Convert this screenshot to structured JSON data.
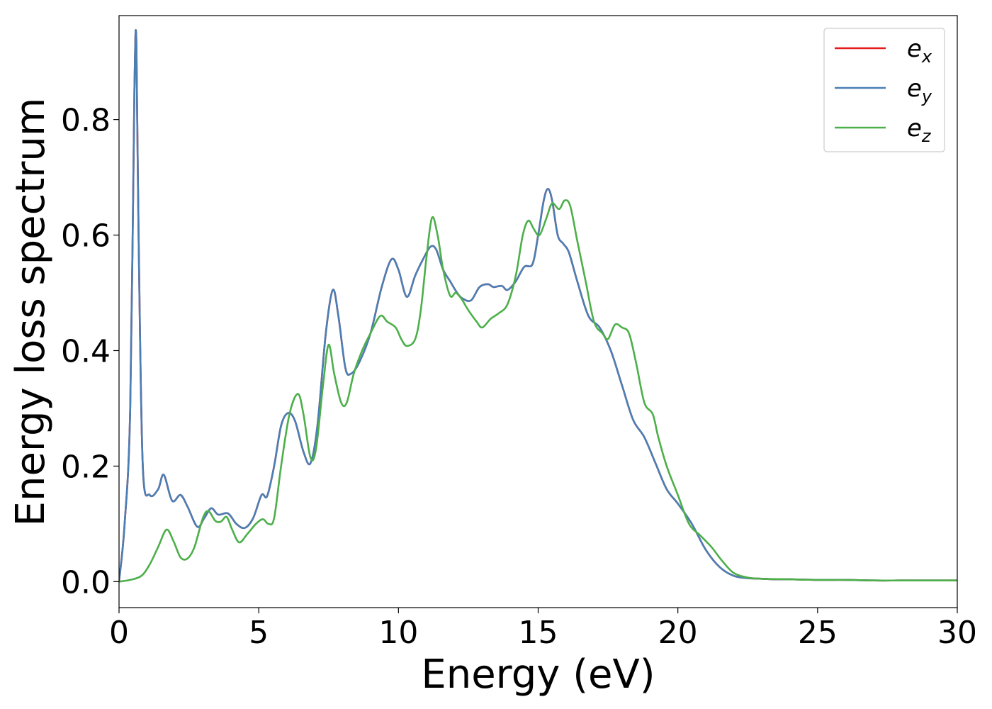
{
  "chart_data": {
    "type": "line",
    "xlabel": "Energy (eV)",
    "ylabel": "Energy loss spectrum",
    "xlim": [
      0,
      30
    ],
    "ylim": [
      -0.045,
      0.98
    ],
    "xticks": [
      0,
      5,
      10,
      15,
      20,
      25,
      30
    ],
    "xtick_labels": [
      "0",
      "5",
      "10",
      "15",
      "20",
      "25",
      "30"
    ],
    "yticks": [
      0.0,
      0.2,
      0.4,
      0.6,
      0.8
    ],
    "ytick_labels": [
      "0.0",
      "0.2",
      "0.4",
      "0.6",
      "0.8"
    ],
    "grid": false,
    "legend_position": "top-right",
    "series": [
      {
        "name": "e",
        "subscript": "x",
        "color": "#e41a1c",
        "x": [
          0,
          0.2,
          0.4,
          0.55,
          0.62,
          0.7,
          0.85,
          1.1,
          1.4,
          1.6,
          1.9,
          2.2,
          2.45,
          2.8,
          3.05,
          3.3,
          3.55,
          3.9,
          4.2,
          4.5,
          4.8,
          5.1,
          5.3,
          5.55,
          5.8,
          6.05,
          6.3,
          6.6,
          6.85,
          7.1,
          7.4,
          7.65,
          7.85,
          8.1,
          8.3,
          8.6,
          9.0,
          9.4,
          9.75,
          10.0,
          10.3,
          10.6,
          10.9,
          11.15,
          11.35,
          11.6,
          11.85,
          12.1,
          12.3,
          12.6,
          12.9,
          13.2,
          13.4,
          13.7,
          13.9,
          14.2,
          14.5,
          14.8,
          15.0,
          15.2,
          15.35,
          15.5,
          15.7,
          15.9,
          16.1,
          16.4,
          16.8,
          17.2,
          17.6,
          18.0,
          18.4,
          18.8,
          19.2,
          19.6,
          20.0,
          20.5,
          21.0,
          21.5,
          22.0,
          22.5,
          23.0,
          23.5,
          24.0,
          25.0,
          26.0,
          27.0,
          28.0,
          29.0,
          30.0
        ],
        "values": [
          0.0,
          0.1,
          0.3,
          0.85,
          0.935,
          0.6,
          0.2,
          0.15,
          0.16,
          0.185,
          0.14,
          0.15,
          0.13,
          0.095,
          0.11,
          0.127,
          0.116,
          0.118,
          0.1,
          0.093,
          0.11,
          0.15,
          0.148,
          0.2,
          0.27,
          0.292,
          0.278,
          0.225,
          0.205,
          0.27,
          0.43,
          0.505,
          0.46,
          0.37,
          0.36,
          0.38,
          0.43,
          0.51,
          0.558,
          0.54,
          0.493,
          0.53,
          0.56,
          0.58,
          0.575,
          0.54,
          0.52,
          0.5,
          0.49,
          0.487,
          0.51,
          0.515,
          0.51,
          0.512,
          0.505,
          0.52,
          0.545,
          0.55,
          0.6,
          0.66,
          0.68,
          0.66,
          0.6,
          0.585,
          0.57,
          0.52,
          0.46,
          0.44,
          0.4,
          0.34,
          0.28,
          0.25,
          0.205,
          0.16,
          0.135,
          0.1,
          0.055,
          0.025,
          0.01,
          0.006,
          0.005,
          0.004,
          0.004,
          0.003,
          0.003,
          0.002,
          0.002,
          0.002,
          0.002
        ]
      },
      {
        "name": "e",
        "subscript": "y",
        "color": "#4a7fb5",
        "x": [
          0,
          0.2,
          0.4,
          0.55,
          0.62,
          0.7,
          0.85,
          1.1,
          1.4,
          1.6,
          1.9,
          2.2,
          2.45,
          2.8,
          3.05,
          3.3,
          3.55,
          3.9,
          4.2,
          4.5,
          4.8,
          5.1,
          5.3,
          5.55,
          5.8,
          6.05,
          6.3,
          6.6,
          6.85,
          7.1,
          7.4,
          7.65,
          7.85,
          8.1,
          8.3,
          8.6,
          9.0,
          9.4,
          9.75,
          10.0,
          10.3,
          10.6,
          10.9,
          11.15,
          11.35,
          11.6,
          11.85,
          12.1,
          12.3,
          12.6,
          12.9,
          13.2,
          13.4,
          13.7,
          13.9,
          14.2,
          14.5,
          14.8,
          15.0,
          15.2,
          15.35,
          15.5,
          15.7,
          15.9,
          16.1,
          16.4,
          16.8,
          17.2,
          17.6,
          18.0,
          18.4,
          18.8,
          19.2,
          19.6,
          20.0,
          20.5,
          21.0,
          21.5,
          22.0,
          22.5,
          23.0,
          23.5,
          24.0,
          25.0,
          26.0,
          27.0,
          28.0,
          29.0,
          30.0
        ],
        "values": [
          0.0,
          0.1,
          0.3,
          0.85,
          0.935,
          0.6,
          0.2,
          0.15,
          0.16,
          0.185,
          0.14,
          0.15,
          0.13,
          0.095,
          0.11,
          0.127,
          0.116,
          0.118,
          0.1,
          0.093,
          0.11,
          0.15,
          0.148,
          0.2,
          0.27,
          0.292,
          0.278,
          0.225,
          0.205,
          0.27,
          0.43,
          0.505,
          0.46,
          0.37,
          0.36,
          0.38,
          0.43,
          0.51,
          0.558,
          0.54,
          0.493,
          0.53,
          0.56,
          0.58,
          0.575,
          0.54,
          0.52,
          0.5,
          0.49,
          0.487,
          0.51,
          0.515,
          0.51,
          0.512,
          0.505,
          0.52,
          0.545,
          0.55,
          0.6,
          0.66,
          0.68,
          0.66,
          0.6,
          0.585,
          0.57,
          0.52,
          0.46,
          0.44,
          0.4,
          0.34,
          0.28,
          0.25,
          0.205,
          0.16,
          0.135,
          0.1,
          0.055,
          0.025,
          0.01,
          0.006,
          0.005,
          0.004,
          0.004,
          0.003,
          0.003,
          0.002,
          0.002,
          0.002,
          0.002
        ]
      },
      {
        "name": "e",
        "subscript": "z",
        "color": "#4daf4a",
        "x": [
          0,
          0.4,
          0.8,
          1.1,
          1.4,
          1.7,
          1.95,
          2.2,
          2.45,
          2.7,
          3.0,
          3.2,
          3.45,
          3.65,
          3.85,
          4.05,
          4.3,
          4.6,
          4.9,
          5.15,
          5.35,
          5.55,
          5.8,
          6.1,
          6.4,
          6.6,
          6.85,
          7.05,
          7.3,
          7.5,
          7.7,
          7.95,
          8.15,
          8.4,
          8.7,
          9.0,
          9.35,
          9.6,
          9.9,
          10.1,
          10.3,
          10.6,
          10.8,
          11.0,
          11.2,
          11.4,
          11.6,
          11.85,
          12.05,
          12.25,
          12.5,
          12.8,
          13.0,
          13.3,
          13.6,
          13.9,
          14.2,
          14.45,
          14.65,
          14.85,
          15.05,
          15.3,
          15.5,
          15.75,
          15.95,
          16.15,
          16.4,
          16.7,
          17.0,
          17.3,
          17.5,
          17.75,
          18.0,
          18.25,
          18.5,
          18.8,
          19.1,
          19.3,
          19.6,
          20.0,
          20.4,
          20.8,
          21.2,
          21.6,
          22.0,
          22.5,
          23.0,
          24.0,
          25.0,
          26.0,
          27.0,
          28.0,
          29.0,
          30.0
        ],
        "values": [
          0.0,
          0.003,
          0.01,
          0.03,
          0.06,
          0.09,
          0.07,
          0.042,
          0.04,
          0.06,
          0.11,
          0.122,
          0.105,
          0.104,
          0.112,
          0.09,
          0.068,
          0.083,
          0.1,
          0.108,
          0.1,
          0.11,
          0.2,
          0.29,
          0.325,
          0.29,
          0.215,
          0.23,
          0.34,
          0.41,
          0.36,
          0.31,
          0.31,
          0.36,
          0.4,
          0.43,
          0.46,
          0.45,
          0.44,
          0.42,
          0.408,
          0.42,
          0.47,
          0.56,
          0.63,
          0.6,
          0.54,
          0.495,
          0.5,
          0.49,
          0.47,
          0.45,
          0.44,
          0.455,
          0.465,
          0.48,
          0.53,
          0.6,
          0.625,
          0.61,
          0.6,
          0.63,
          0.655,
          0.645,
          0.66,
          0.65,
          0.59,
          0.52,
          0.45,
          0.43,
          0.42,
          0.445,
          0.44,
          0.43,
          0.38,
          0.31,
          0.29,
          0.25,
          0.2,
          0.15,
          0.1,
          0.08,
          0.06,
          0.035,
          0.015,
          0.007,
          0.005,
          0.004,
          0.003,
          0.003,
          0.002,
          0.002,
          0.002,
          0.002
        ]
      }
    ]
  }
}
